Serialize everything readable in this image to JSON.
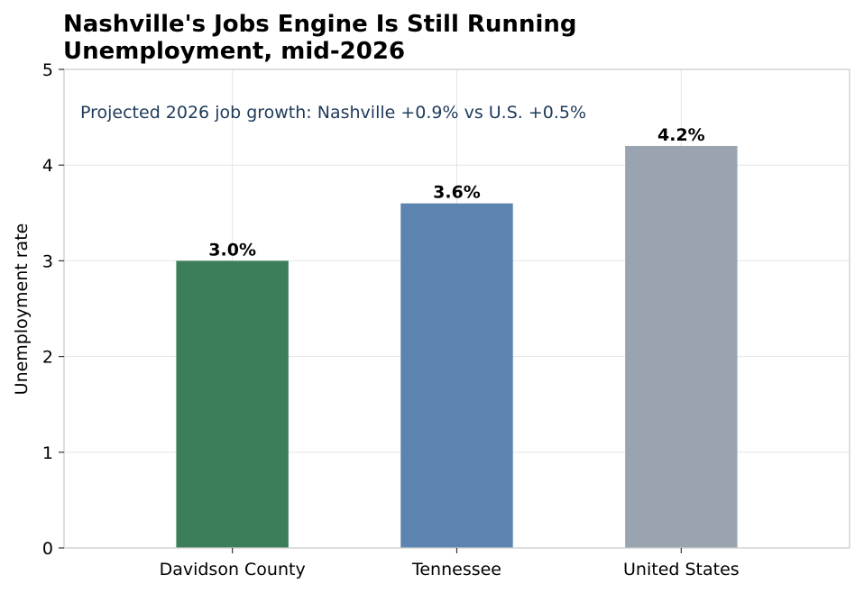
{
  "chart_data": {
    "type": "bar",
    "title": "Nashville's Jobs Engine Is Still Running",
    "subtitle": "Unemployment, mid-2026",
    "ylabel": "Unemployment rate",
    "xlabel": "",
    "categories": [
      "Davidson County",
      "Tennessee",
      "United States"
    ],
    "values": [
      3.0,
      3.6,
      4.2
    ],
    "data_labels": [
      "3.0%",
      "3.6%",
      "4.2%"
    ],
    "bar_colors": [
      "#3c7d5a",
      "#5b84b0",
      "#99a4b0"
    ],
    "ylim": [
      0,
      5
    ],
    "yticks": [
      "0",
      "1",
      "2",
      "3",
      "4",
      "5"
    ],
    "annotation": "Projected 2026 job growth: Nashville +0.9% vs U.S. +0.5%",
    "annotation_color": "#1e3a5a",
    "grid": true,
    "legend": "none"
  }
}
